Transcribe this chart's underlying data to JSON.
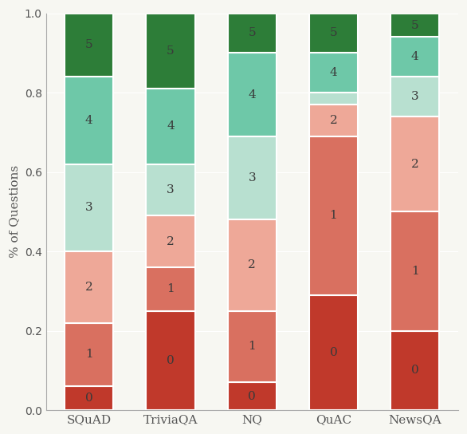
{
  "categories": [
    "SQuAD",
    "TriviaQA",
    "NQ",
    "QuAC",
    "NewsQA"
  ],
  "segments": {
    "SQuAD": [
      0.06,
      0.16,
      0.18,
      0.22,
      0.22,
      0.16
    ],
    "TriviaQA": [
      0.25,
      0.11,
      0.13,
      0.13,
      0.19,
      0.19
    ],
    "NQ": [
      0.07,
      0.18,
      0.23,
      0.21,
      0.21,
      0.1
    ],
    "QuAC": [
      0.29,
      0.4,
      0.08,
      0.03,
      0.1,
      0.1
    ],
    "NewsQA": [
      0.2,
      0.3,
      0.24,
      0.1,
      0.1,
      0.06
    ]
  },
  "colors": [
    "#c0392b",
    "#d97060",
    "#eea898",
    "#b8e0d0",
    "#6ec8a8",
    "#2d7d38"
  ],
  "labels": [
    "0",
    "1",
    "2",
    "3",
    "4",
    "5"
  ],
  "ylabel": "% of Questions",
  "background_color": "#f7f7f2",
  "bar_width": 0.6,
  "edge_color": "white",
  "edge_linewidth": 1.5,
  "figsize": [
    5.86,
    5.44
  ],
  "dpi": 100
}
